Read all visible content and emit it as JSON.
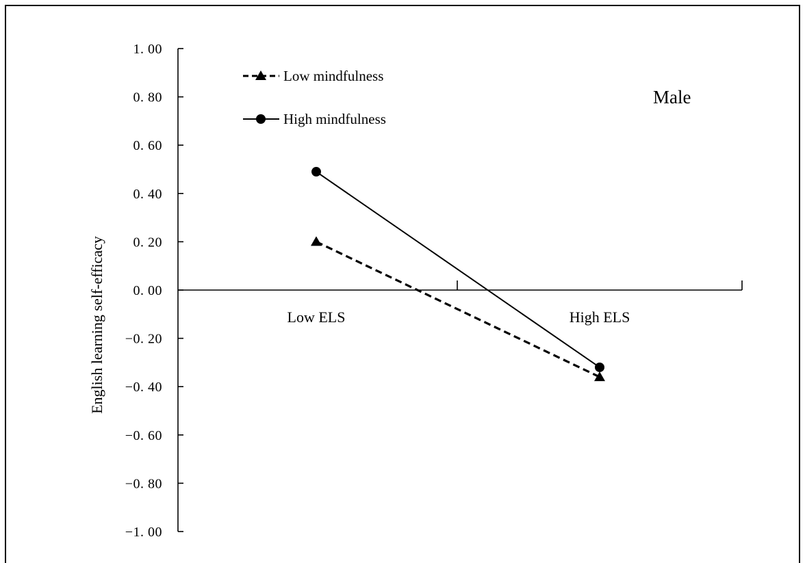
{
  "chart_data": {
    "type": "line",
    "categories": [
      "Low ELS",
      "High ELS"
    ],
    "series": [
      {
        "name": "Low mindfulness",
        "values": [
          0.2,
          -0.36
        ],
        "style": "dashed",
        "marker": "triangle",
        "color": "#000000"
      },
      {
        "name": "High mindfulness",
        "values": [
          0.49,
          -0.32
        ],
        "style": "solid",
        "marker": "circle",
        "color": "#000000"
      }
    ],
    "ylabel": "English learning self-efficacy",
    "xlabel": "",
    "ylim": [
      -1.0,
      1.0
    ],
    "yticks": [
      1.0,
      0.8,
      0.6,
      0.4,
      0.2,
      0.0,
      -0.2,
      -0.4,
      -0.6,
      -0.8,
      -1.0
    ],
    "ytick_labels": [
      "1. 00",
      "0. 80",
      "0. 60",
      "0. 40",
      "0. 20",
      "0. 00",
      "−0. 20",
      "−0. 40",
      "−0. 60",
      "−0. 80",
      "−1. 00"
    ],
    "annotation": "Male",
    "legend_position": "top-left",
    "grid": false
  }
}
